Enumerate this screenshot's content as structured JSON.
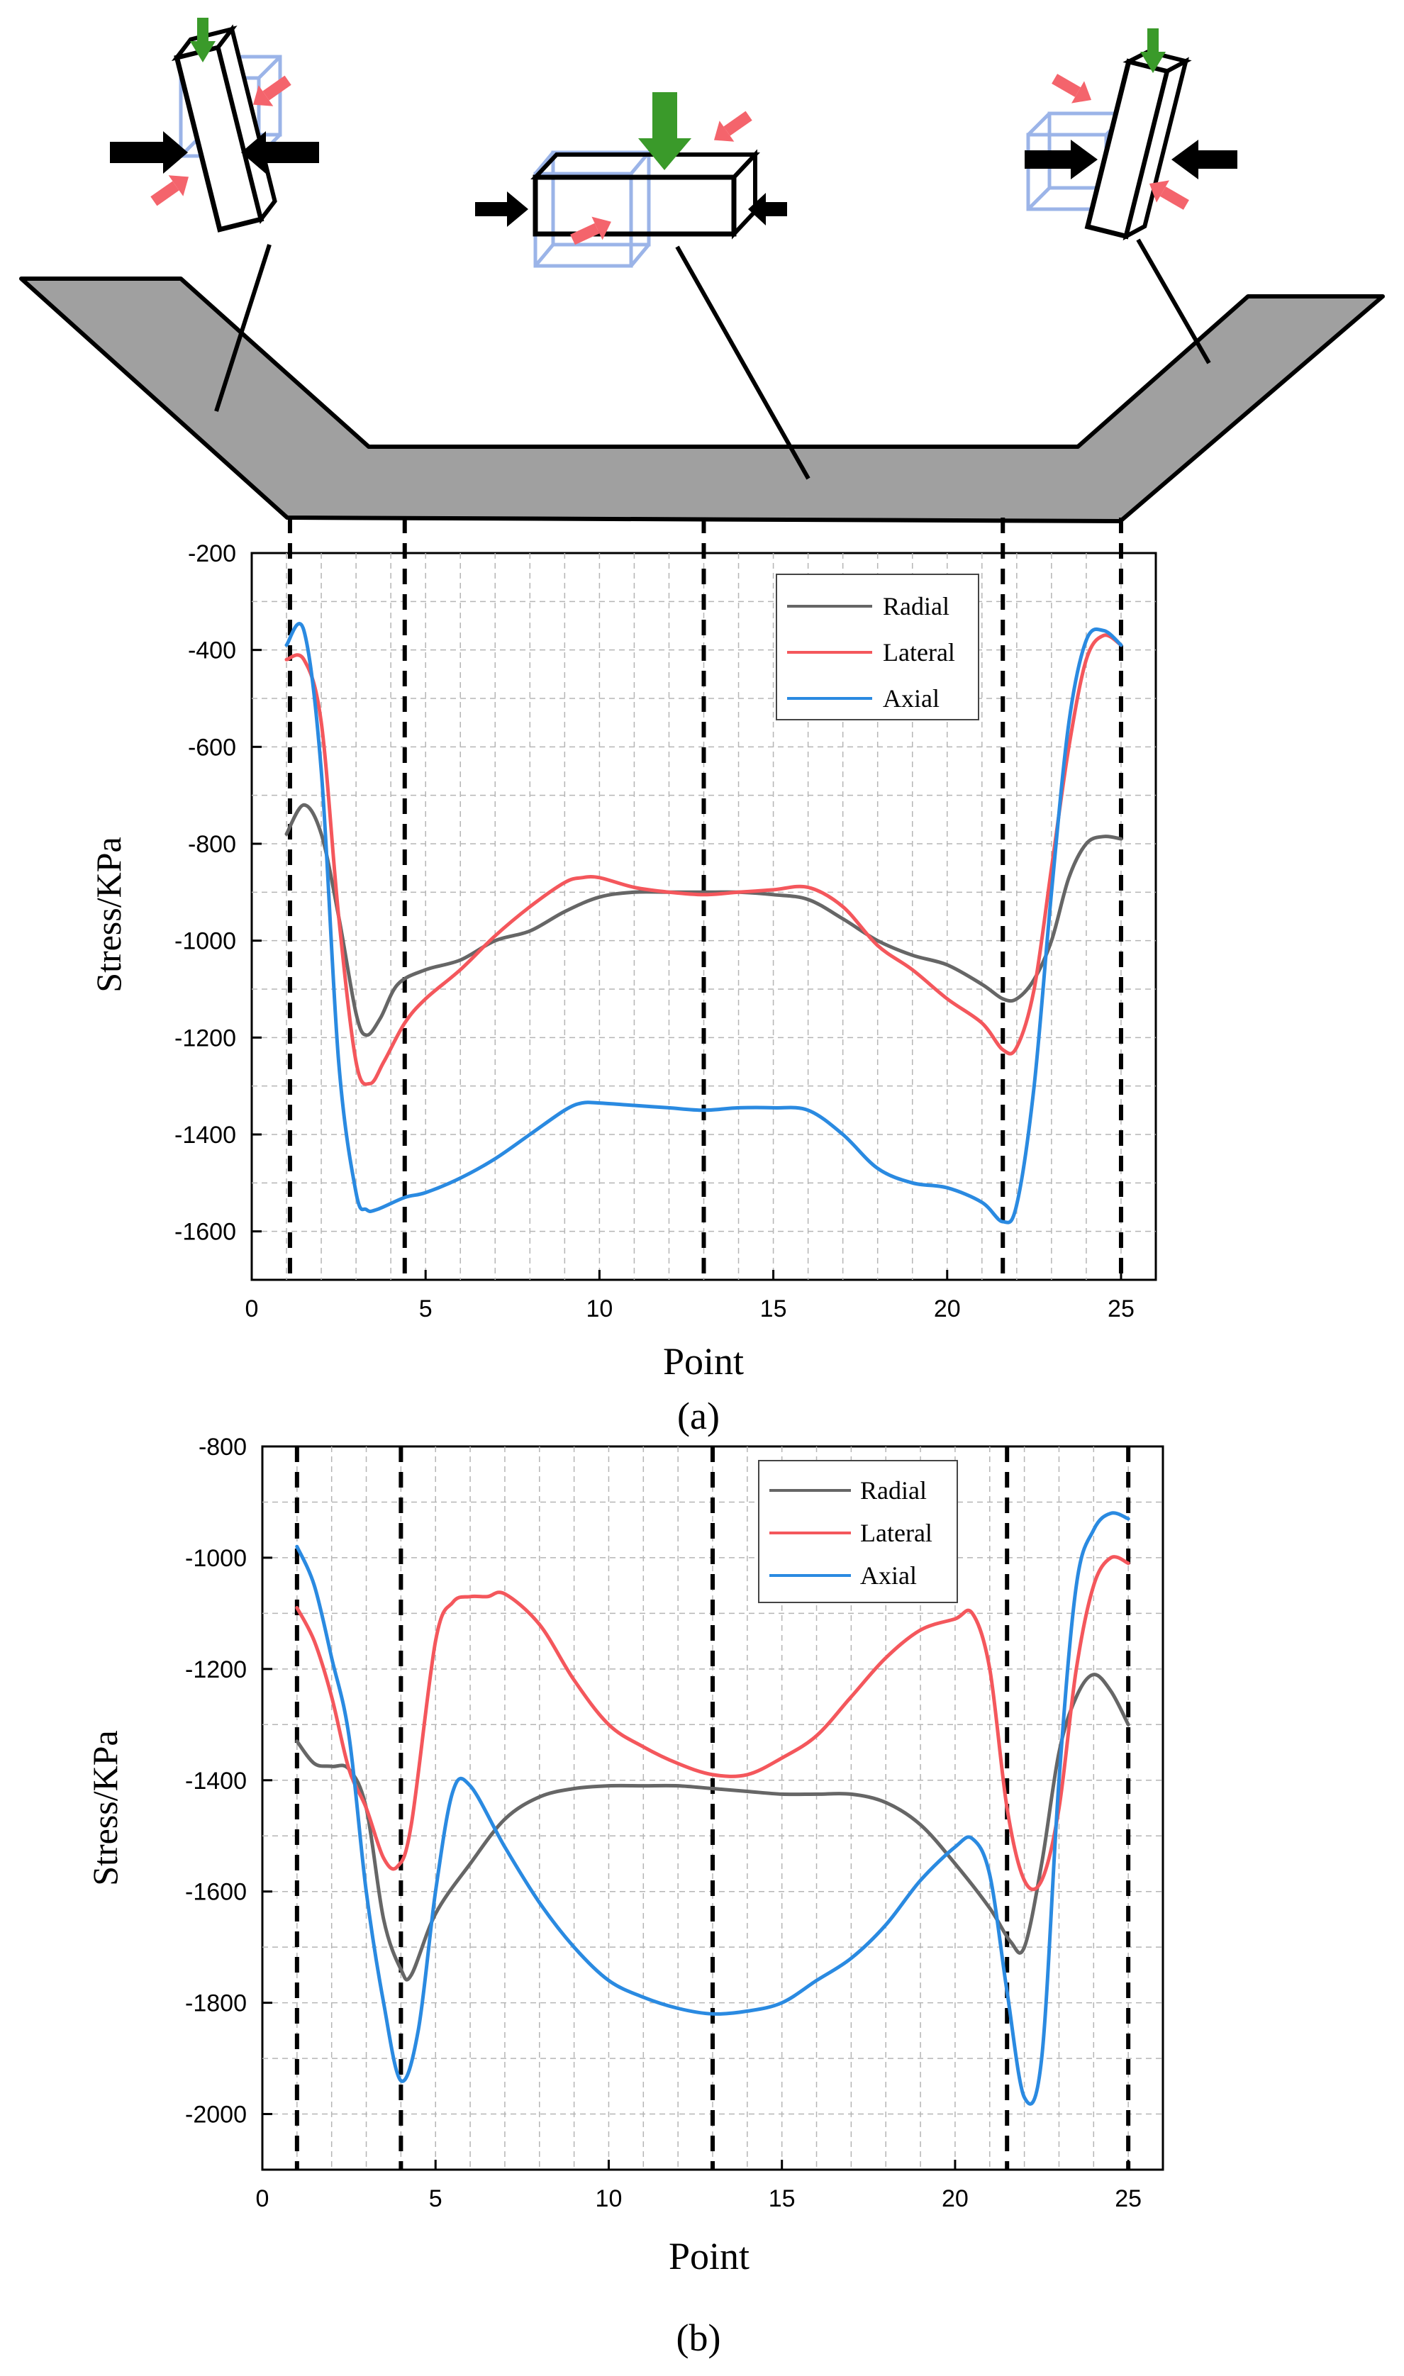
{
  "chart_data": [
    {
      "type": "line",
      "caption": "(a)",
      "xlabel": "Point",
      "ylabel": "Stress/KPa",
      "xlim": [
        0,
        26
      ],
      "ylim": [
        -1700,
        -200
      ],
      "xticks": [
        "0",
        "5",
        "10",
        "15",
        "20",
        "25"
      ],
      "yticks": [
        "-200",
        "-400",
        "-600",
        "-800",
        "-1000",
        "-1200",
        "-1400",
        "-1600"
      ],
      "grid": true,
      "legend_position": "top-right",
      "vlines": [
        1.1,
        4.4,
        13,
        21.6,
        25
      ],
      "series": [
        {
          "name": "Radial",
          "color": "#666666",
          "x": [
            1,
            1.5,
            2,
            2.5,
            3,
            3.3,
            3.7,
            4.2,
            5,
            6,
            7,
            8,
            9,
            10,
            11,
            12,
            13,
            14,
            15,
            16,
            17,
            18,
            19,
            20,
            21,
            21.6,
            22,
            22.5,
            23,
            23.5,
            24,
            24.5,
            25
          ],
          "y": [
            -780,
            -720,
            -780,
            -950,
            -1150,
            -1195,
            -1160,
            -1090,
            -1060,
            -1040,
            -1000,
            -980,
            -940,
            -910,
            -900,
            -900,
            -900,
            -900,
            -905,
            -915,
            -955,
            -1000,
            -1030,
            -1050,
            -1090,
            -1120,
            -1120,
            -1080,
            -1000,
            -870,
            -800,
            -785,
            -790
          ]
        },
        {
          "name": "Lateral",
          "color": "#f4575c",
          "x": [
            1,
            1.5,
            2,
            2.5,
            3,
            3.4,
            3.8,
            4.4,
            5,
            6,
            7,
            8,
            9,
            9.5,
            10,
            11,
            12,
            13,
            14,
            15,
            16,
            17,
            18,
            19,
            20,
            21,
            21.6,
            22,
            22.5,
            23,
            23.5,
            24,
            24.5,
            25
          ],
          "y": [
            -420,
            -420,
            -550,
            -950,
            -1250,
            -1295,
            -1250,
            -1170,
            -1120,
            -1060,
            -990,
            -930,
            -880,
            -870,
            -870,
            -890,
            -900,
            -905,
            -900,
            -895,
            -890,
            -930,
            -1010,
            -1060,
            -1120,
            -1170,
            -1225,
            -1220,
            -1100,
            -850,
            -600,
            -420,
            -370,
            -390
          ]
        },
        {
          "name": "Axial",
          "color": "#2a8ae1",
          "x": [
            1,
            1.5,
            2,
            2.5,
            3,
            3.3,
            3.6,
            4.4,
            5,
            6,
            7,
            8,
            9,
            9.5,
            10,
            11,
            12,
            13,
            14,
            15,
            16,
            17,
            18,
            19,
            20,
            21,
            21.6,
            22,
            22.5,
            23,
            23.5,
            24,
            24.5,
            25
          ],
          "y": [
            -390,
            -360,
            -650,
            -1250,
            -1520,
            -1555,
            -1555,
            -1530,
            -1520,
            -1490,
            -1450,
            -1400,
            -1350,
            -1335,
            -1335,
            -1340,
            -1345,
            -1350,
            -1345,
            -1345,
            -1350,
            -1400,
            -1470,
            -1500,
            -1510,
            -1540,
            -1580,
            -1545,
            -1300,
            -900,
            -550,
            -380,
            -360,
            -390
          ]
        }
      ]
    },
    {
      "type": "line",
      "caption": "(b)",
      "xlabel": "Point",
      "ylabel": "Stress/KPa",
      "xlim": [
        0,
        26
      ],
      "ylim": [
        -2100,
        -800
      ],
      "xticks": [
        "0",
        "5",
        "10",
        "15",
        "20",
        "25"
      ],
      "yticks": [
        "-800",
        "-1000",
        "-1200",
        "-1400",
        "-1600",
        "-1800",
        "-2000"
      ],
      "grid": true,
      "legend_position": "top-right",
      "vlines": [
        1,
        4,
        13,
        21.5,
        25
      ],
      "series": [
        {
          "name": "Radial",
          "color": "#666666",
          "x": [
            1,
            1.5,
            2,
            2.5,
            3,
            3.5,
            4,
            4.3,
            5,
            6,
            7,
            8,
            9,
            10,
            11,
            12,
            13,
            14,
            15,
            16,
            17,
            18,
            19,
            20,
            21,
            21.6,
            22,
            22.5,
            23,
            23.5,
            24,
            24.5,
            25
          ],
          "y": [
            -1330,
            -1370,
            -1375,
            -1380,
            -1450,
            -1650,
            -1740,
            -1750,
            -1640,
            -1550,
            -1470,
            -1430,
            -1415,
            -1410,
            -1410,
            -1410,
            -1415,
            -1420,
            -1425,
            -1425,
            -1425,
            -1440,
            -1480,
            -1550,
            -1630,
            -1690,
            -1700,
            -1550,
            -1350,
            -1250,
            -1210,
            -1240,
            -1300
          ]
        },
        {
          "name": "Lateral",
          "color": "#f4575c",
          "x": [
            1,
            1.5,
            2,
            2.5,
            3,
            3.5,
            3.9,
            4.3,
            5,
            5.5,
            6,
            6.5,
            7,
            8,
            9,
            10,
            11,
            12,
            13,
            14,
            15,
            16,
            17,
            18,
            19,
            20,
            20.5,
            21,
            21.5,
            22,
            22.5,
            23,
            23.5,
            24,
            24.5,
            25
          ],
          "y": [
            -1090,
            -1150,
            -1250,
            -1380,
            -1450,
            -1540,
            -1555,
            -1480,
            -1150,
            -1080,
            -1070,
            -1070,
            -1065,
            -1120,
            -1220,
            -1300,
            -1340,
            -1370,
            -1390,
            -1390,
            -1360,
            -1320,
            -1250,
            -1180,
            -1130,
            -1110,
            -1100,
            -1200,
            -1450,
            -1580,
            -1580,
            -1450,
            -1200,
            -1050,
            -1000,
            -1010
          ]
        },
        {
          "name": "Axial",
          "color": "#2a8ae1",
          "x": [
            1,
            1.5,
            2,
            2.5,
            3,
            3.5,
            4,
            4.5,
            5,
            5.5,
            6,
            7,
            8,
            9,
            10,
            11,
            12,
            13,
            14,
            15,
            16,
            17,
            18,
            19,
            20,
            20.5,
            21,
            21.5,
            22,
            22.5,
            23,
            23.5,
            24,
            24.5,
            25
          ],
          "y": [
            -980,
            -1050,
            -1180,
            -1320,
            -1600,
            -1800,
            -1940,
            -1850,
            -1600,
            -1420,
            -1410,
            -1520,
            -1620,
            -1700,
            -1760,
            -1790,
            -1810,
            -1820,
            -1815,
            -1800,
            -1760,
            -1720,
            -1660,
            -1580,
            -1520,
            -1505,
            -1570,
            -1780,
            -1970,
            -1900,
            -1400,
            -1050,
            -950,
            -920,
            -930
          ]
        }
      ]
    }
  ],
  "diagram": {
    "icons": [
      "top-left-element-icon",
      "top-middle-element-icon",
      "top-right-element-icon"
    ],
    "colors": {
      "fill": "#a0a0a0",
      "arrow_primary": "#000000",
      "arrow_vertical": "#3a9a2a",
      "arrow_shear": "#f4646c",
      "cube": "#9bb4e8"
    }
  }
}
